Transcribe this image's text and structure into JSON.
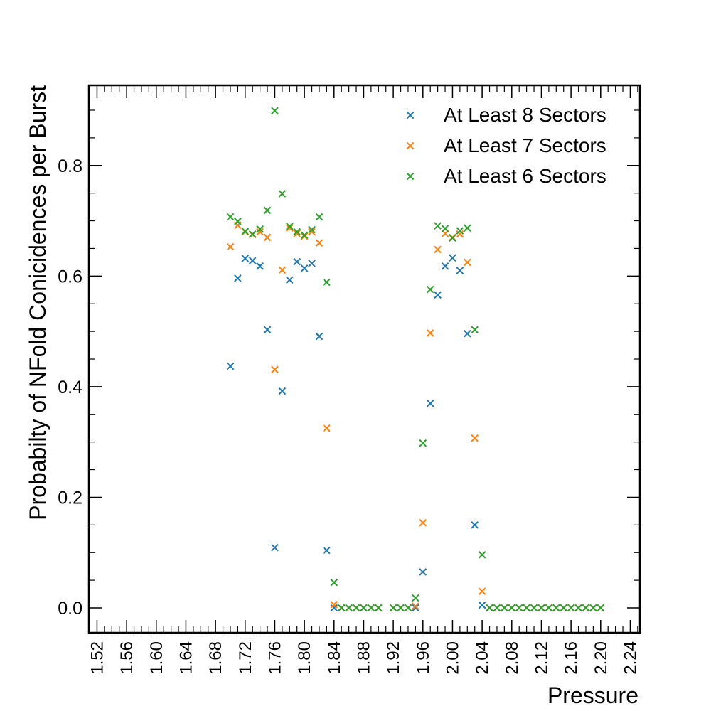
{
  "chart_data": {
    "type": "scatter",
    "xlabel": "Pressure",
    "ylabel": "Probabilty of NFold Conicidences per Burst",
    "xlim": [
      1.509,
      2.253
    ],
    "ylim": [
      -0.045,
      0.945
    ],
    "x_ticks": [
      1.52,
      1.56,
      1.6,
      1.64,
      1.68,
      1.72,
      1.76,
      1.8,
      1.84,
      1.88,
      1.92,
      1.96,
      2.0,
      2.04,
      2.08,
      2.12,
      2.16,
      2.2,
      2.24
    ],
    "x_tick_labels": [
      "1.52",
      "1.56",
      "1.60",
      "1.64",
      "1.68",
      "1.72",
      "1.76",
      "1.80",
      "1.84",
      "1.88",
      "1.92",
      "1.96",
      "2.00",
      "2.04",
      "2.08",
      "2.12",
      "2.16",
      "2.20",
      "2.24"
    ],
    "y_ticks": [
      0.0,
      0.2,
      0.4,
      0.6,
      0.8
    ],
    "y_tick_labels": [
      "0.0",
      "0.2",
      "0.4",
      "0.6",
      "0.8"
    ],
    "grid": false,
    "legend_position": "top-right",
    "marker": "x",
    "series": [
      {
        "name": "At Least 8 Sectors",
        "color": "#1f77b4",
        "points": [
          [
            1.7,
            0.437
          ],
          [
            1.71,
            0.596
          ],
          [
            1.72,
            0.632
          ],
          [
            1.73,
            0.628
          ],
          [
            1.74,
            0.618
          ],
          [
            1.75,
            0.503
          ],
          [
            1.76,
            0.109
          ],
          [
            1.77,
            0.392
          ],
          [
            1.78,
            0.593
          ],
          [
            1.79,
            0.626
          ],
          [
            1.8,
            0.614
          ],
          [
            1.81,
            0.623
          ],
          [
            1.82,
            0.491
          ],
          [
            1.83,
            0.104
          ],
          [
            1.84,
            0.0
          ],
          [
            1.85,
            0.0
          ],
          [
            1.86,
            0.0
          ],
          [
            1.87,
            0.0
          ],
          [
            1.88,
            0.0
          ],
          [
            1.89,
            0.0
          ],
          [
            1.9,
            0.0
          ],
          [
            1.92,
            0.0
          ],
          [
            1.93,
            0.0
          ],
          [
            1.94,
            0.0
          ],
          [
            1.95,
            0.0
          ],
          [
            1.96,
            0.065
          ],
          [
            1.97,
            0.37
          ],
          [
            1.98,
            0.566
          ],
          [
            1.99,
            0.618
          ],
          [
            2.0,
            0.633
          ],
          [
            2.01,
            0.61
          ],
          [
            2.02,
            0.496
          ],
          [
            2.03,
            0.15
          ],
          [
            2.04,
            0.005
          ],
          [
            2.05,
            0.0
          ],
          [
            2.06,
            0.0
          ],
          [
            2.07,
            0.0
          ],
          [
            2.08,
            0.0
          ],
          [
            2.09,
            0.0
          ],
          [
            2.1,
            0.0
          ],
          [
            2.11,
            0.0
          ],
          [
            2.12,
            0.0
          ],
          [
            2.13,
            0.0
          ],
          [
            2.14,
            0.0
          ],
          [
            2.15,
            0.0
          ],
          [
            2.16,
            0.0
          ],
          [
            2.17,
            0.0
          ],
          [
            2.18,
            0.0
          ],
          [
            2.19,
            0.0
          ],
          [
            2.2,
            0.0
          ]
        ]
      },
      {
        "name": "At Least 7 Sectors",
        "color": "#ff7f0e",
        "points": [
          [
            1.7,
            0.653
          ],
          [
            1.71,
            0.692
          ],
          [
            1.72,
            0.68
          ],
          [
            1.73,
            0.675
          ],
          [
            1.74,
            0.68
          ],
          [
            1.75,
            0.67
          ],
          [
            1.76,
            0.431
          ],
          [
            1.77,
            0.611
          ],
          [
            1.78,
            0.687
          ],
          [
            1.79,
            0.677
          ],
          [
            1.8,
            0.672
          ],
          [
            1.81,
            0.68
          ],
          [
            1.82,
            0.66
          ],
          [
            1.83,
            0.325
          ],
          [
            1.84,
            0.006
          ],
          [
            1.85,
            0.0
          ],
          [
            1.86,
            0.0
          ],
          [
            1.87,
            0.0
          ],
          [
            1.88,
            0.0
          ],
          [
            1.89,
            0.0
          ],
          [
            1.9,
            0.0
          ],
          [
            1.92,
            0.0
          ],
          [
            1.93,
            0.0
          ],
          [
            1.94,
            0.0
          ],
          [
            1.95,
            0.003
          ],
          [
            1.96,
            0.154
          ],
          [
            1.97,
            0.497
          ],
          [
            1.98,
            0.648
          ],
          [
            1.99,
            0.677
          ],
          [
            2.0,
            0.67
          ],
          [
            2.01,
            0.676
          ],
          [
            2.02,
            0.625
          ],
          [
            2.03,
            0.307
          ],
          [
            2.04,
            0.03
          ],
          [
            2.05,
            0.0
          ],
          [
            2.06,
            0.0
          ],
          [
            2.07,
            0.0
          ],
          [
            2.08,
            0.0
          ],
          [
            2.09,
            0.0
          ],
          [
            2.1,
            0.0
          ],
          [
            2.11,
            0.0
          ],
          [
            2.12,
            0.0
          ],
          [
            2.13,
            0.0
          ],
          [
            2.14,
            0.0
          ],
          [
            2.15,
            0.0
          ],
          [
            2.16,
            0.0
          ],
          [
            2.17,
            0.0
          ],
          [
            2.18,
            0.0
          ],
          [
            2.19,
            0.0
          ],
          [
            2.2,
            0.0
          ]
        ]
      },
      {
        "name": "At Least 6 Sectors",
        "color": "#2ca02c",
        "points": [
          [
            1.7,
            0.707
          ],
          [
            1.71,
            0.699
          ],
          [
            1.72,
            0.681
          ],
          [
            1.73,
            0.676
          ],
          [
            1.74,
            0.685
          ],
          [
            1.75,
            0.719
          ],
          [
            1.76,
            0.899
          ],
          [
            1.77,
            0.749
          ],
          [
            1.78,
            0.69
          ],
          [
            1.79,
            0.68
          ],
          [
            1.8,
            0.674
          ],
          [
            1.81,
            0.684
          ],
          [
            1.82,
            0.707
          ],
          [
            1.83,
            0.589
          ],
          [
            1.84,
            0.046
          ],
          [
            1.85,
            0.0
          ],
          [
            1.86,
            0.0
          ],
          [
            1.87,
            0.0
          ],
          [
            1.88,
            0.0
          ],
          [
            1.89,
            0.0
          ],
          [
            1.9,
            0.0
          ],
          [
            1.92,
            0.0
          ],
          [
            1.93,
            0.0
          ],
          [
            1.94,
            0.0
          ],
          [
            1.95,
            0.018
          ],
          [
            1.96,
            0.298
          ],
          [
            1.97,
            0.576
          ],
          [
            1.98,
            0.691
          ],
          [
            1.99,
            0.686
          ],
          [
            2.0,
            0.669
          ],
          [
            2.01,
            0.682
          ],
          [
            2.02,
            0.687
          ],
          [
            2.03,
            0.503
          ],
          [
            2.04,
            0.096
          ],
          [
            2.05,
            0.0
          ],
          [
            2.06,
            0.0
          ],
          [
            2.07,
            0.0
          ],
          [
            2.08,
            0.0
          ],
          [
            2.09,
            0.0
          ],
          [
            2.1,
            0.0
          ],
          [
            2.11,
            0.0
          ],
          [
            2.12,
            0.0
          ],
          [
            2.13,
            0.0
          ],
          [
            2.14,
            0.0
          ],
          [
            2.15,
            0.0
          ],
          [
            2.16,
            0.0
          ],
          [
            2.17,
            0.0
          ],
          [
            2.18,
            0.0
          ],
          [
            2.19,
            0.0
          ],
          [
            2.2,
            0.0
          ]
        ]
      }
    ]
  }
}
